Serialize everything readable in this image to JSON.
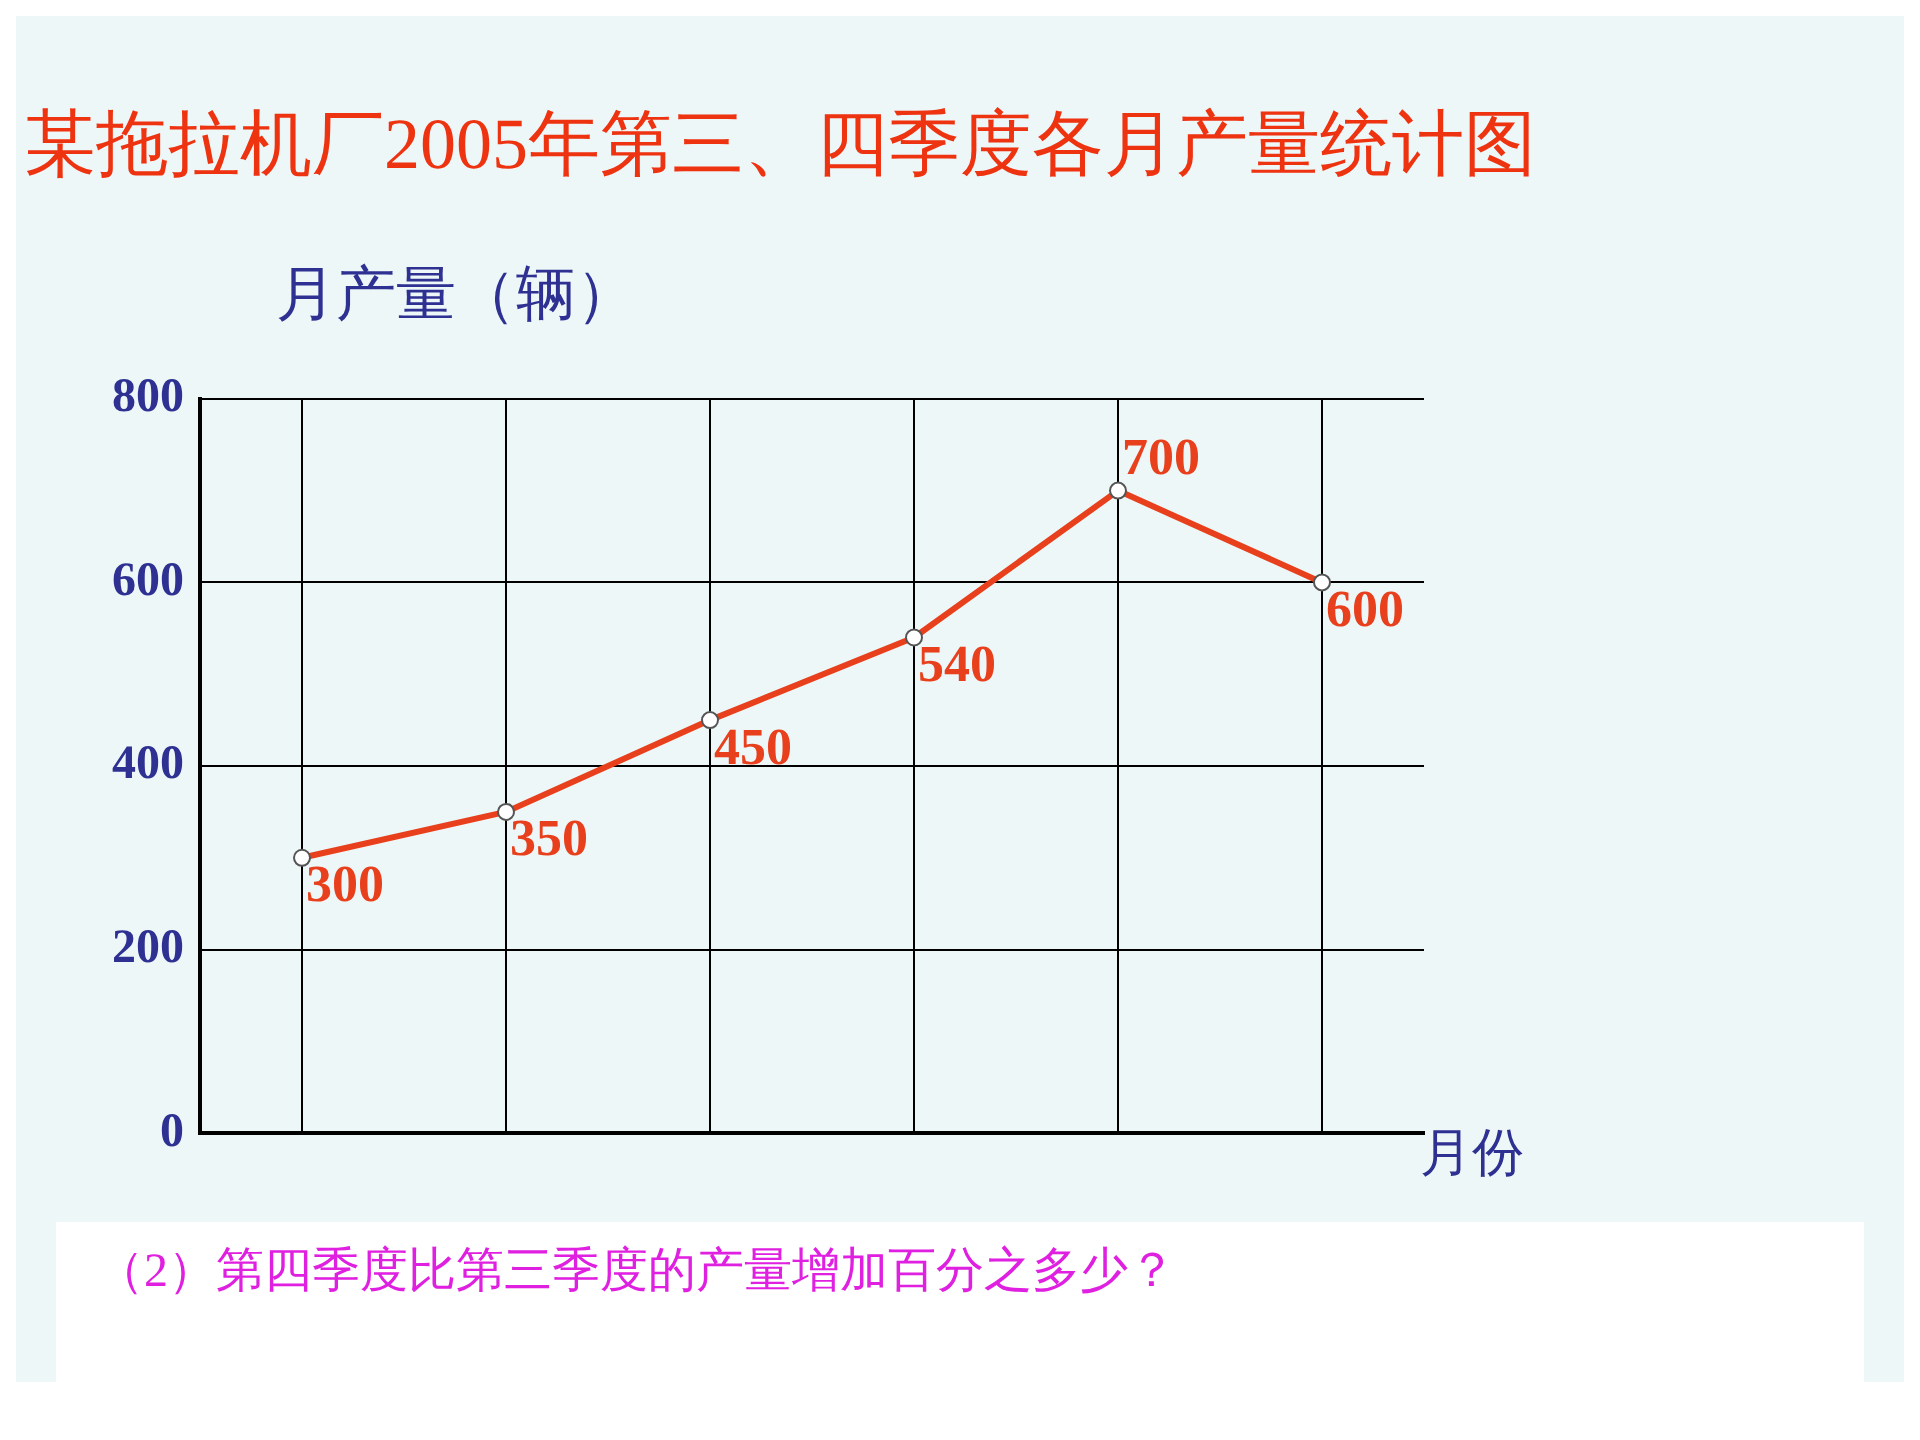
{
  "chart_data": {
    "type": "line",
    "title": "某拖拉机厂2005年第三、四季度各月产量统计图",
    "ylabel": "月产量（辆）",
    "xlabel": "月份",
    "categories": [
      null,
      null,
      null,
      null,
      null,
      null
    ],
    "series": [
      {
        "color": "#e8401c",
        "values": [
          300,
          350,
          450,
          540,
          700,
          600
        ]
      }
    ],
    "ylim": [
      0,
      800
    ],
    "yticks": [
      0,
      200,
      400,
      600,
      800
    ],
    "grid": true,
    "marker": "circle",
    "data_labels": true,
    "annotations": [
      "（2）第四季度比第三季度的产量增加百分之多少？"
    ]
  }
}
